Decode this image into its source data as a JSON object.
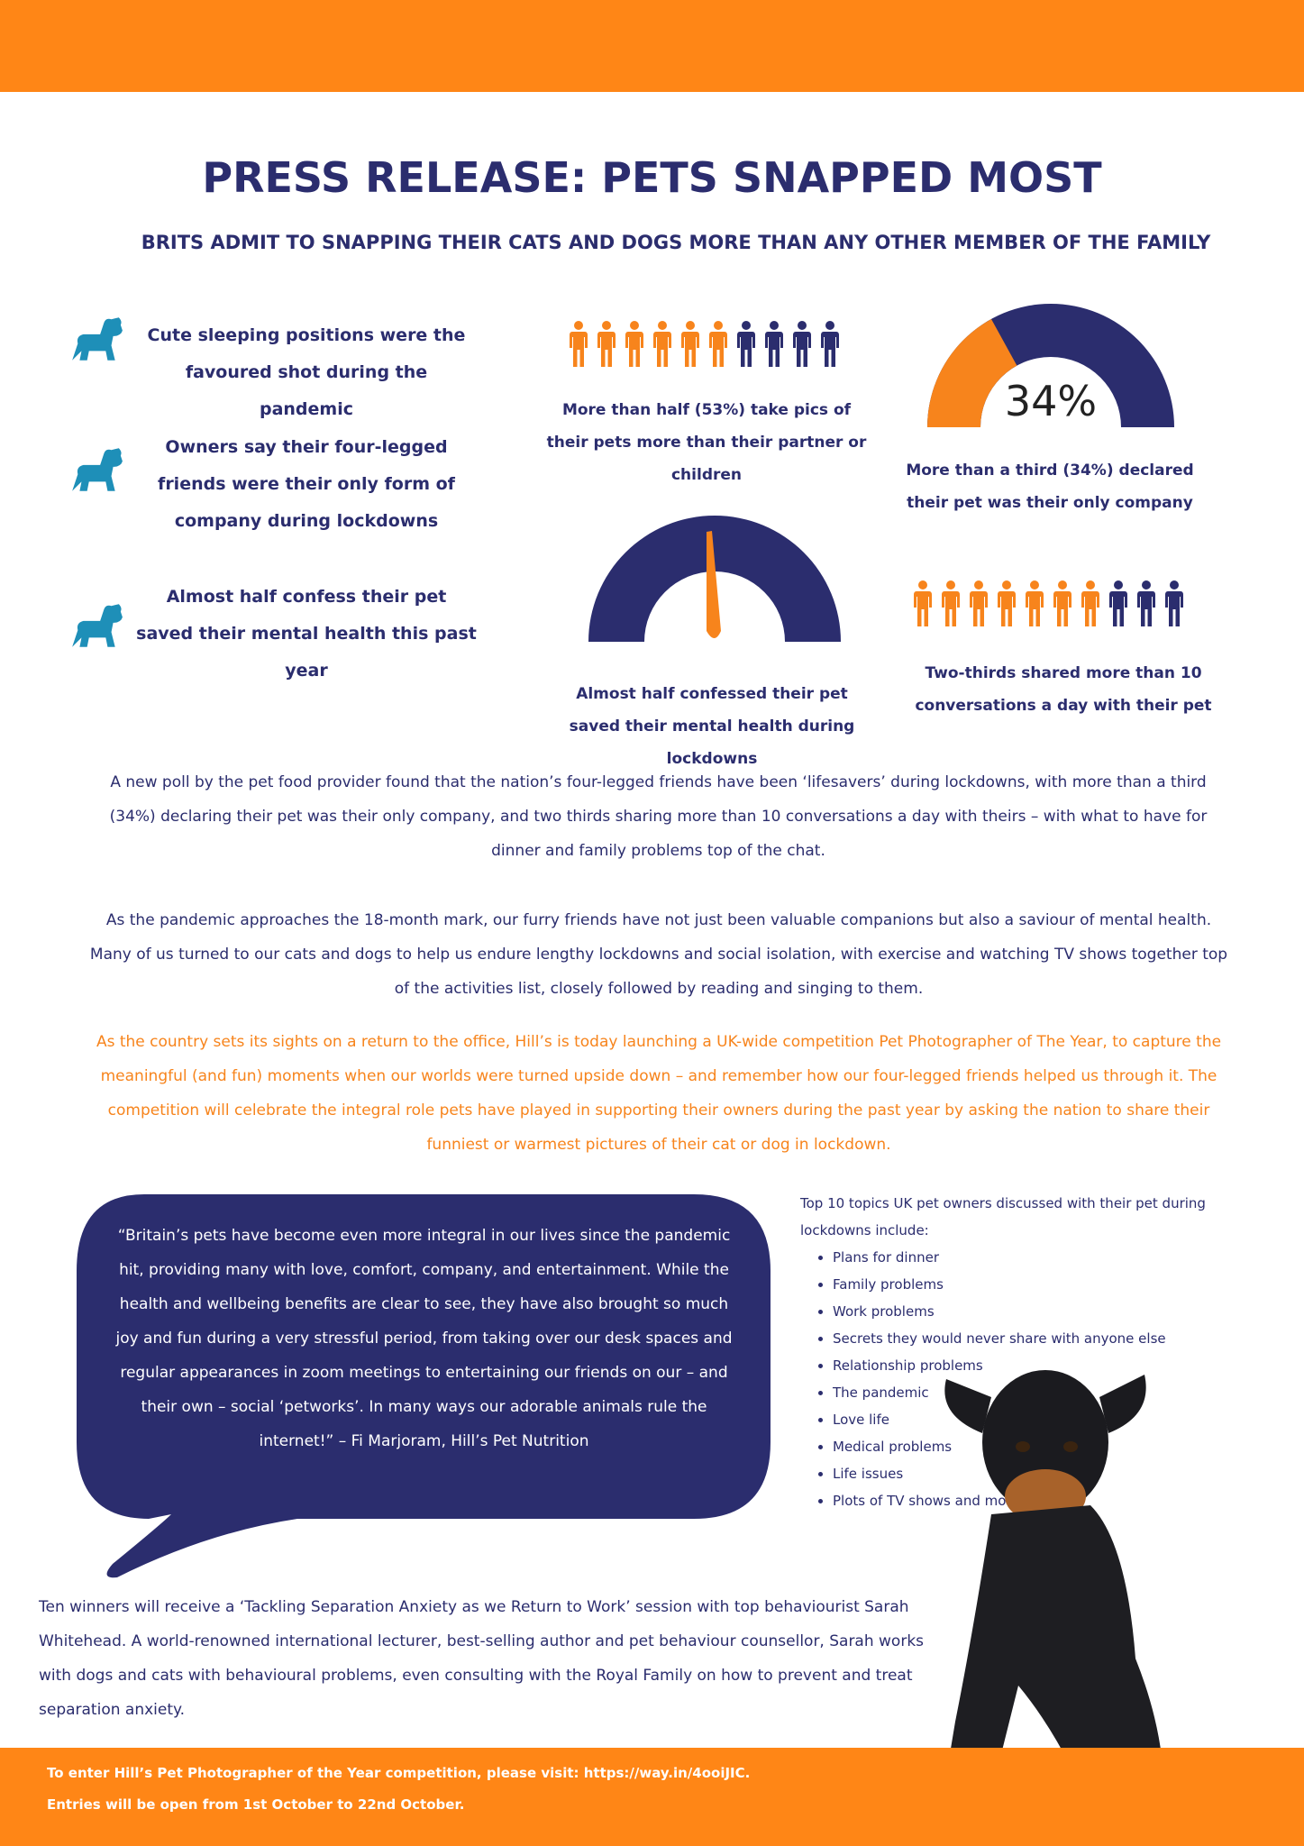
{
  "header": {
    "title": "PRESS RELEASE: PETS SNAPPED MOST",
    "subtitle": "BRITS ADMIT TO SNAPPING THEIR CATS AND DOGS MORE THAN ANY OTHER MEMBER OF THE FAMILY"
  },
  "facts": [
    "Cute sleeping positions were the favoured shot during the pandemic",
    "Owners say their four-legged friends were their only form of company during lockdowns",
    "Almost half confess their pet saved their mental health this past year"
  ],
  "stats": [
    {
      "text": "More than half (53%) take pics of their pets more than their partner or children"
    },
    {
      "value": 34,
      "label": "34%",
      "text": "More than a third (34%) declared their pet was their only company"
    },
    {
      "text": "Almost half confessed their pet saved their mental health during lockdowns"
    },
    {
      "text": "Two-thirds shared more than 10 conversations a day with their pet"
    }
  ],
  "paragraphs": [
    "A new poll by the pet food provider found that the nation’s four-legged friends have been ‘lifesavers’ during lockdowns, with more than a third (34%) declaring their pet was their only company, and two thirds sharing more than 10 conversations a day with theirs – with what to have for dinner and family problems top of the chat.",
    "As the pandemic approaches the 18-month mark, our furry friends have not just been valuable companions but also a saviour of mental health. Many of us turned to our cats and dogs to help us endure lengthy lockdowns and social isolation, with exercise and watching TV shows together top of the activities list, closely followed by reading and singing to them.",
    "As the country sets its sights on a return to the office, Hill’s is today launching a UK-wide competition Pet Photographer of The Year, to capture the meaningful (and fun) moments when our worlds were turned upside down – and remember how our four-legged friends helped us through it. The competition will celebrate the integral role pets have played in supporting their owners during the past year by asking the nation to share their funniest or warmest pictures of their cat or dog in lockdown."
  ],
  "quote": "“Britain’s pets have become even more integral in our lives since the pandemic hit, providing many with love, comfort, company, and entertainment. While the health and wellbeing benefits are clear to see, they have also brought so much joy and fun during a very stressful period, from taking over our desk spaces and regular appearances in zoom meetings to entertaining our friends on our – and their own – social ‘petworks’. In many ways our adorable animals rule the internet!” – Fi Marjoram, Hill’s Pet Nutrition",
  "list": {
    "title": "Top 10 topics UK pet owners discussed with their pet during lockdowns include:",
    "items": [
      "Plans for dinner",
      "Family problems",
      "Work problems",
      "Secrets they would never share with anyone else",
      "Relationship problems",
      "The pandemic",
      "Love life",
      "Medical problems",
      "Life issues",
      "Plots of TV shows and movies"
    ]
  },
  "closing": "Ten winners will receive a ‘Tackling Separation Anxiety as we Return to Work’ session with top behaviourist Sarah Whitehead. A world-renowned international lecturer, best-selling author and pet behaviour counsellor, Sarah works with dogs and cats with behavioural problems, even consulting with the Royal Family on how to prevent and treat separation anxiety.",
  "footer": [
    "To enter Hill’s Pet Photographer of the Year competition, please visit: https://way.in/4ooiJIC.",
    "Entries will be open from 1st October to 22nd October."
  ]
}
